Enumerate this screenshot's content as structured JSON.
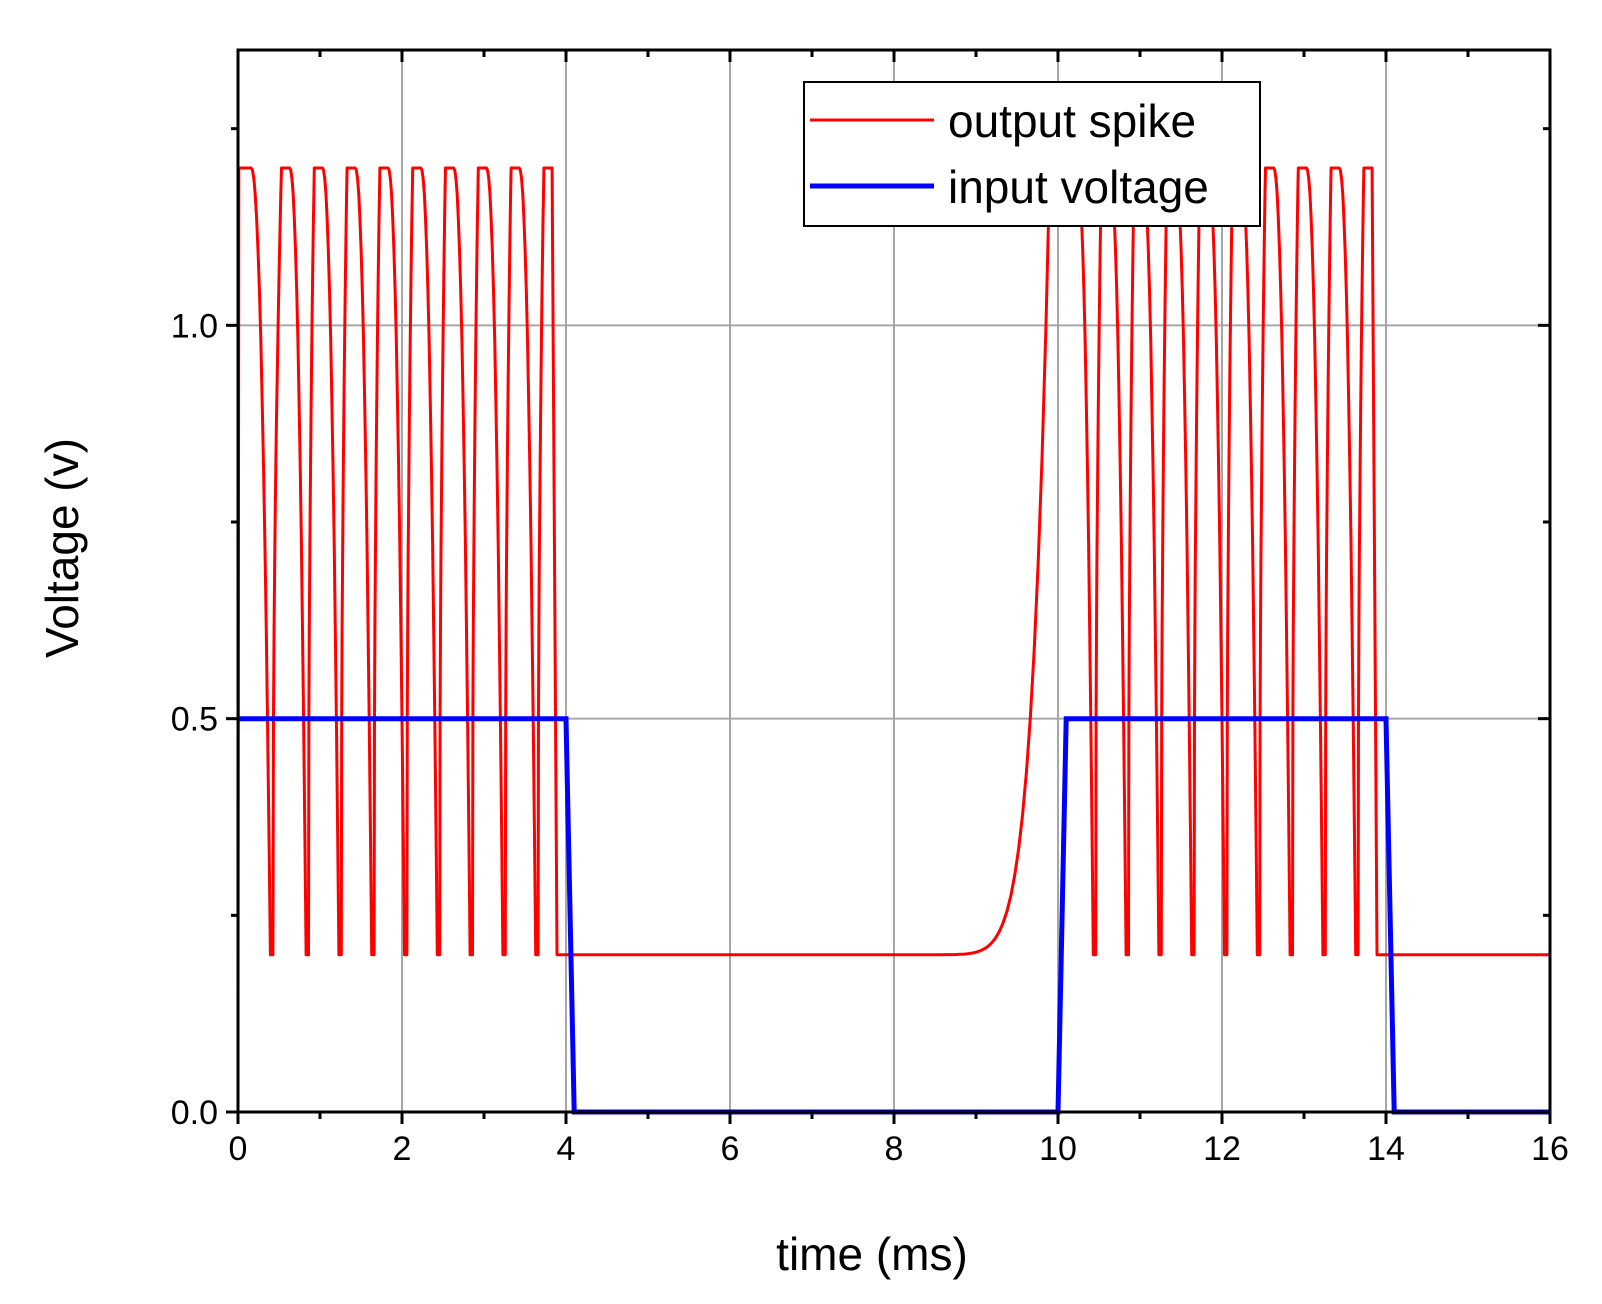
{
  "chart_data": {
    "type": "line",
    "title": "",
    "xlabel": "time (ms)",
    "ylabel": "Voltage (v)",
    "xlim": [
      0,
      16
    ],
    "ylim": [
      0,
      1.35
    ],
    "x_ticks": [
      0,
      2,
      4,
      6,
      8,
      10,
      12,
      14,
      16
    ],
    "x_tick_labels": [
      "0",
      "2",
      "4",
      "6",
      "8",
      "10",
      "12",
      "14",
      "16"
    ],
    "x_minor_ticks": [
      1,
      3,
      5,
      7,
      9,
      11,
      13,
      15
    ],
    "y_ticks": [
      0.0,
      0.5,
      1.0
    ],
    "y_tick_labels": [
      "0.0",
      "0.5",
      "1.0"
    ],
    "y_minor_ticks": [
      0.25,
      0.75,
      1.25
    ],
    "grid": true,
    "legend_position": "top-center",
    "series": [
      {
        "name": "output spike",
        "color": "#ff0000",
        "description": "periodic spikes between 0.2 V and 1.2 V, ~0.4 ms period, while input is high",
        "spike_high": 1.2,
        "spike_low": 0.2,
        "bursts": [
          {
            "start": 0.0,
            "end": 4.0,
            "spike_centers": [
              0.11,
              0.58,
              0.98,
              1.38,
              1.78,
              2.18,
              2.58,
              2.98,
              3.38,
              3.78
            ]
          },
          {
            "start": 10.0,
            "end": 14.0,
            "spike_centers": [
              10.18,
              10.58,
              10.98,
              11.38,
              11.78,
              12.18,
              12.58,
              12.98,
              13.38,
              13.78
            ]
          }
        ],
        "rest_level": 0.2,
        "rise_start": 8.0,
        "rise_end": 10.0
      },
      {
        "name": "input voltage",
        "color": "#0000ff",
        "x": [
          0.0,
          4.0,
          4.1,
          10.0,
          10.1,
          14.0,
          14.1,
          16.0
        ],
        "y": [
          0.5,
          0.5,
          0.0,
          0.0,
          0.5,
          0.5,
          0.0,
          0.0
        ]
      }
    ]
  }
}
